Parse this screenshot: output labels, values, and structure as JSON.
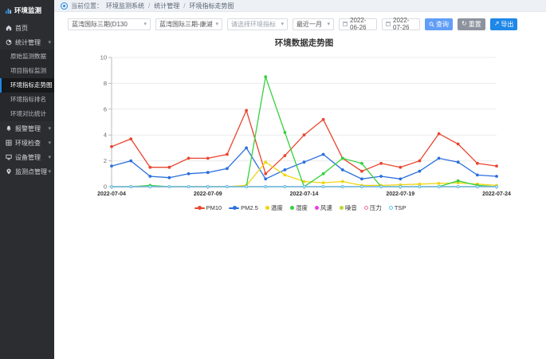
{
  "app": {
    "logo_text": "环境监测"
  },
  "sidebar": {
    "items": [
      {
        "label": "首页"
      },
      {
        "label": "统计管理",
        "children": [
          "原始监测数据",
          "项目指标监测",
          "环境指标走势图",
          "环境指标排名",
          "环境对比统计"
        ],
        "active_child": "环境指标走势图"
      },
      {
        "label": "报警管理"
      },
      {
        "label": "环境检查"
      },
      {
        "label": "设备管理"
      },
      {
        "label": "监测点管理"
      }
    ]
  },
  "breadcrumb": {
    "prefix": "当前位置：",
    "sep": "/",
    "parts": [
      "环境监测系统",
      "统计管理",
      "环境指标走势图"
    ]
  },
  "filters": {
    "project": {
      "value": "蓝湾国际三期(D130"
    },
    "device": {
      "value": "蓝湾国际三期-康湖"
    },
    "indicator": {
      "placeholder": "请选择环境指标"
    },
    "range": {
      "value": "最近一月"
    },
    "start_date": "2022-06-26",
    "end_date": "2022-07-26",
    "search_label": "查询",
    "reset_label": "重置",
    "export_label": "导出"
  },
  "chart_data": {
    "type": "line",
    "title": "环境数据走势图",
    "x": [
      "2022-07-04",
      "2022-07-05",
      "2022-07-06",
      "2022-07-07",
      "2022-07-08",
      "2022-07-09",
      "2022-07-10",
      "2022-07-11",
      "2022-07-12",
      "2022-07-13",
      "2022-07-14",
      "2022-07-15",
      "2022-07-16",
      "2022-07-17",
      "2022-07-18",
      "2022-07-19",
      "2022-07-20",
      "2022-07-21",
      "2022-07-22",
      "2022-07-23",
      "2022-07-24"
    ],
    "x_tick_labels": [
      "2022-07-04",
      "2022-07-09",
      "2022-07-14",
      "2022-07-19",
      "2022-07-24"
    ],
    "ylim": [
      0,
      10
    ],
    "y_ticks": [
      0,
      2,
      4,
      6,
      8,
      10
    ],
    "grid": true,
    "legend_position": "bottom",
    "series": [
      {
        "name": "PM10",
        "color": "#e8462f",
        "marker": "line",
        "values": [
          3.1,
          3.7,
          1.5,
          1.5,
          2.2,
          2.2,
          2.5,
          5.9,
          1.0,
          2.4,
          4.0,
          5.2,
          2.2,
          1.2,
          1.8,
          1.5,
          2.0,
          4.1,
          3.3,
          1.8,
          1.6
        ]
      },
      {
        "name": "PM2.5",
        "color": "#2b6fdd",
        "marker": "line",
        "values": [
          1.6,
          2.0,
          0.8,
          0.7,
          1.0,
          1.1,
          1.4,
          3.0,
          0.6,
          1.3,
          1.9,
          2.5,
          1.3,
          0.6,
          0.8,
          0.6,
          1.2,
          2.2,
          1.9,
          0.9,
          0.8
        ]
      },
      {
        "name": "温度",
        "color": "#efd510",
        "marker": "dot",
        "values": [
          0,
          0,
          0,
          0,
          0,
          0,
          0,
          0.1,
          1.9,
          0.9,
          0.4,
          0.3,
          0.4,
          0.1,
          0.1,
          0.15,
          0.2,
          0.25,
          0.3,
          0.2,
          0.1
        ]
      },
      {
        "name": "湿度",
        "color": "#35d13f",
        "marker": "dot",
        "values": [
          0,
          0,
          0.1,
          0,
          0,
          0,
          0,
          0,
          8.5,
          4.2,
          0,
          1.0,
          2.2,
          1.8,
          0,
          0,
          0,
          0,
          0.45,
          0.1,
          0
        ]
      },
      {
        "name": "风速",
        "color": "#e83de8",
        "marker": "dot",
        "values": [
          0,
          0,
          0,
          0,
          0,
          0,
          0,
          0,
          0,
          0,
          0,
          0,
          0,
          0,
          0,
          0,
          0,
          0,
          0,
          0,
          0
        ]
      },
      {
        "name": "噪音",
        "color": "#bed730",
        "marker": "dot",
        "values": [
          0,
          0,
          0,
          0,
          0,
          0,
          0,
          0,
          0,
          0,
          0,
          0,
          0,
          0,
          0,
          0,
          0,
          0,
          0,
          0,
          0
        ]
      },
      {
        "name": "压力",
        "color": "#f06e9c",
        "marker": "ring",
        "values": [
          0,
          0,
          0,
          0,
          0,
          0,
          0,
          0,
          0,
          0,
          0,
          0,
          0,
          0,
          0,
          0,
          0,
          0,
          0,
          0,
          0
        ]
      },
      {
        "name": "TSP",
        "color": "#54c8f5",
        "marker": "ring",
        "values": [
          0,
          0,
          0,
          0,
          0,
          0,
          0,
          0,
          0,
          0,
          0,
          0,
          0,
          0,
          0,
          0,
          0,
          0,
          0,
          0,
          0
        ]
      }
    ]
  }
}
